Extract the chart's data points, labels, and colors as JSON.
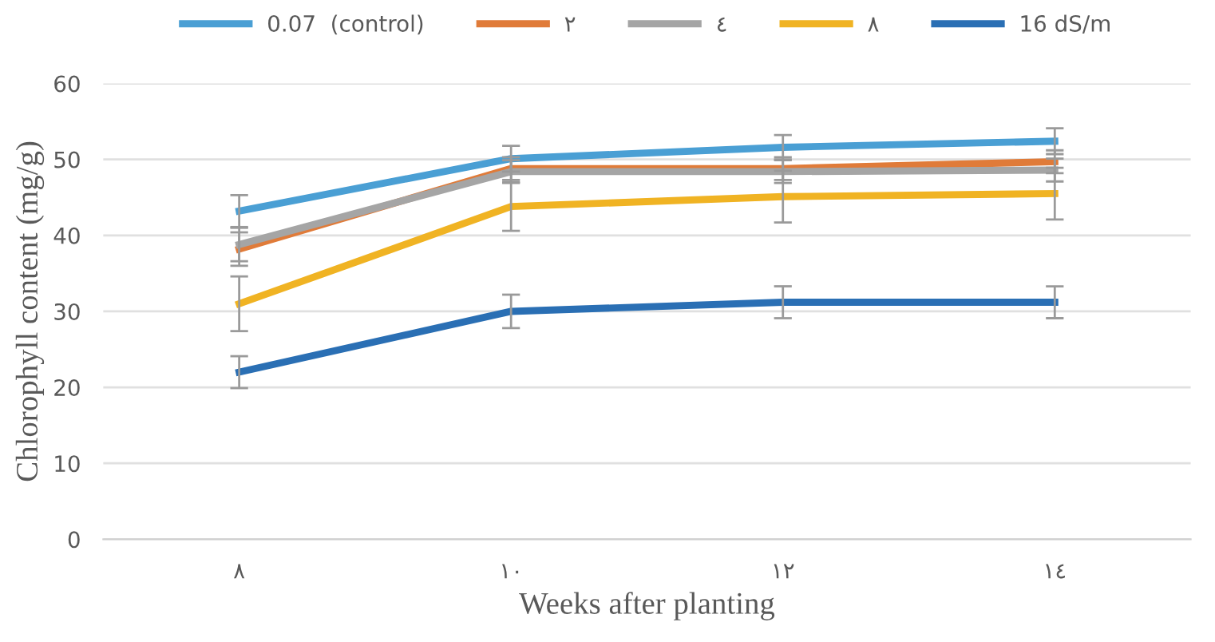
{
  "chart_data": {
    "type": "line",
    "xlabel": "Weeks after planting",
    "ylabel": "Chlorophyll content (mg/g)",
    "categories": [
      "٨",
      "١٠",
      "١٢",
      "١٤"
    ],
    "series": [
      {
        "name": "0.07  (control)",
        "color": "#4a9fd4",
        "values": [
          43.2,
          50.1,
          51.6,
          52.4
        ],
        "errors": [
          2.1,
          1.7,
          1.6,
          1.7
        ]
      },
      {
        "name": "٢",
        "color": "#e07b39",
        "values": [
          38.2,
          48.8,
          48.8,
          49.7
        ],
        "errors": [
          2.2,
          1.5,
          1.5,
          1.5
        ]
      },
      {
        "name": "٤",
        "color": "#a5a5a5",
        "values": [
          38.8,
          48.4,
          48.4,
          48.6
        ],
        "errors": [
          2.2,
          1.5,
          1.5,
          1.5
        ]
      },
      {
        "name": "٨",
        "color": "#f0b323",
        "values": [
          31.0,
          43.8,
          45.1,
          45.5
        ],
        "errors": [
          3.6,
          3.2,
          3.4,
          3.4
        ]
      },
      {
        "name": "16 dS/m",
        "color": "#2a6fb4",
        "values": [
          22.0,
          30.0,
          31.2,
          31.2
        ],
        "errors": [
          2.1,
          2.2,
          2.1,
          2.1
        ]
      }
    ],
    "ylim": [
      0,
      60
    ],
    "yticks": [
      0,
      10,
      20,
      30,
      40,
      50,
      60
    ],
    "grid": "y",
    "legend": "top",
    "marker": "none",
    "line_style": "solid"
  }
}
